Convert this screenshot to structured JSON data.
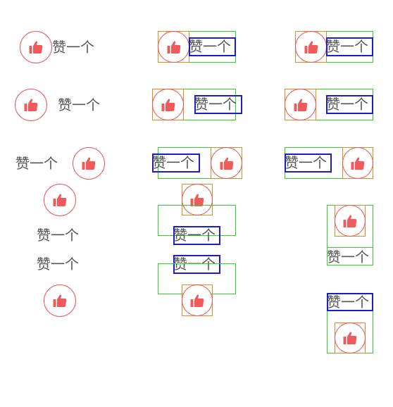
{
  "like_text": "赞一个",
  "icon": {
    "name": "thumbs-up-icon",
    "color": "#f05a5a"
  },
  "debug_colors": {
    "container": "#2fd12f",
    "icon_box": "#e08a2a",
    "text_box": "#1b1bd0"
  }
}
